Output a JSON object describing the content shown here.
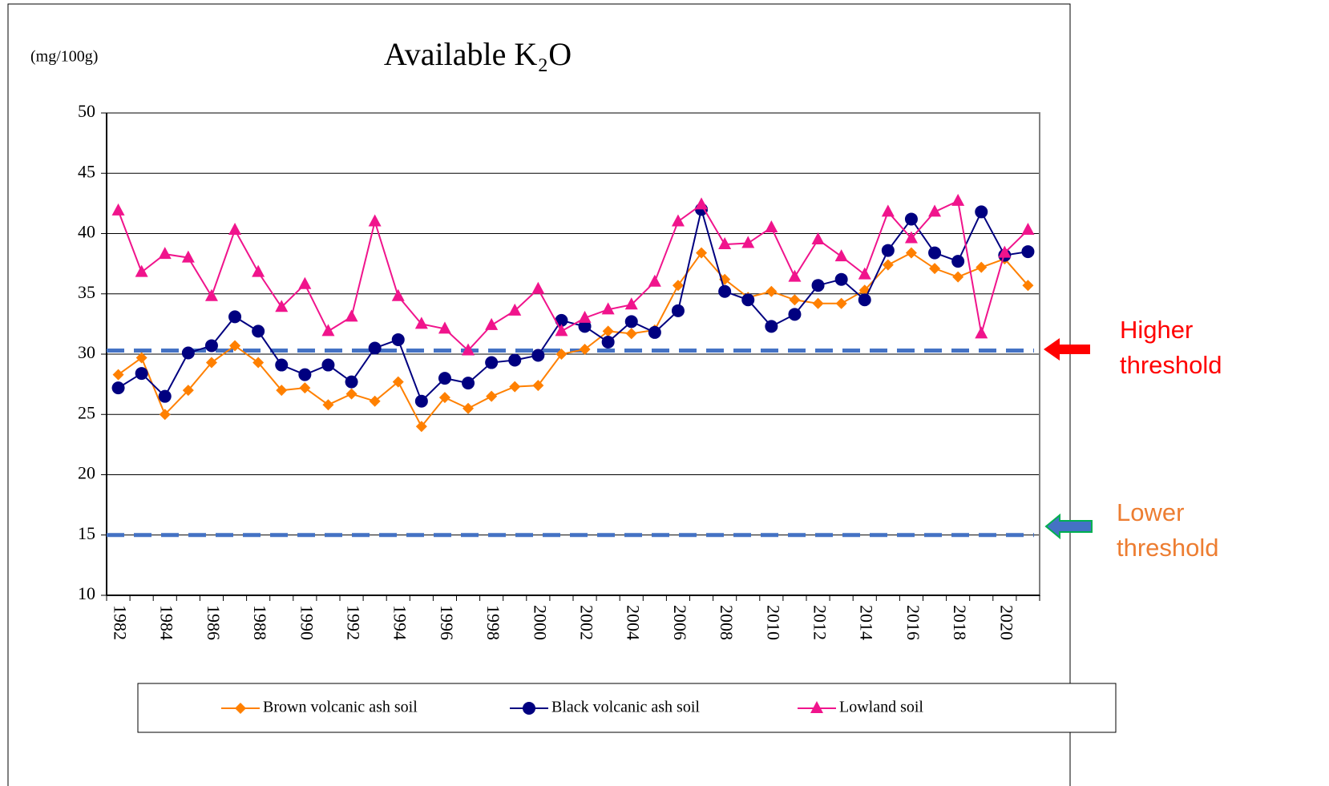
{
  "chart_data": {
    "type": "line",
    "title": "Available K₂O",
    "y_label": "(mg/100g)",
    "categories": [
      "1982",
      null,
      "1984",
      null,
      "1986",
      null,
      "1988",
      null,
      "1990",
      null,
      "1992",
      null,
      "1994",
      null,
      "1996",
      null,
      "1998",
      null,
      "2000",
      null,
      "2002",
      null,
      "2004",
      null,
      "2006",
      null,
      "2008",
      null,
      "2010",
      null,
      "2012",
      null,
      "2014",
      null,
      "2016",
      null,
      "2018",
      null,
      "2020",
      null
    ],
    "series": [
      {
        "name": "Brown volcanic ash soil",
        "color": "#ff8000",
        "marker": "diamond",
        "values": [
          28.3,
          29.7,
          25.0,
          27.0,
          29.3,
          30.7,
          29.3,
          27.0,
          27.2,
          25.8,
          26.7,
          26.1,
          27.7,
          24.0,
          26.4,
          25.5,
          26.5,
          27.3,
          27.4,
          30.0,
          30.4,
          31.9,
          31.7,
          32.0,
          35.7,
          38.4,
          36.2,
          34.7,
          35.2,
          34.5,
          34.2,
          34.2,
          35.3,
          37.4,
          38.4,
          37.1,
          36.4,
          37.2,
          37.9,
          35.7
        ]
      },
      {
        "name": "Black volcanic ash soil",
        "color": "#000080",
        "marker": "circle",
        "values": [
          27.2,
          28.4,
          26.5,
          30.1,
          30.7,
          33.1,
          31.9,
          29.1,
          28.3,
          29.1,
          27.7,
          30.5,
          31.2,
          26.1,
          28.0,
          27.6,
          29.3,
          29.5,
          29.9,
          32.8,
          32.3,
          31.0,
          32.7,
          31.8,
          33.6,
          42.0,
          35.2,
          34.5,
          32.3,
          33.3,
          35.7,
          36.2,
          34.5,
          38.6,
          41.2,
          38.4,
          37.7,
          41.8,
          38.2,
          38.5
        ]
      },
      {
        "name": "Lowland soil",
        "color": "#f0148c",
        "marker": "triangle",
        "values": [
          41.9,
          36.8,
          38.3,
          38.0,
          34.8,
          40.3,
          36.8,
          33.9,
          35.8,
          31.9,
          33.1,
          41.0,
          34.8,
          32.5,
          32.1,
          30.3,
          32.4,
          33.6,
          35.4,
          31.9,
          33.0,
          33.7,
          34.1,
          36.0,
          41.0,
          42.4,
          39.1,
          39.2,
          40.5,
          36.4,
          39.5,
          38.1,
          36.6,
          41.8,
          39.6,
          41.8,
          42.7,
          31.7,
          38.4,
          40.3
        ]
      }
    ],
    "ylim": [
      10,
      50
    ],
    "yticks": [
      10,
      15,
      20,
      25,
      30,
      35,
      40,
      45,
      50
    ],
    "grid": true,
    "thresholds": [
      {
        "value": 30.3,
        "label": "Higher threshold",
        "color": "#ff0000"
      },
      {
        "value": 15,
        "label": "Lower threshold",
        "color": "#ed7d31"
      }
    ],
    "threshold_line_color": "#4472c4"
  }
}
